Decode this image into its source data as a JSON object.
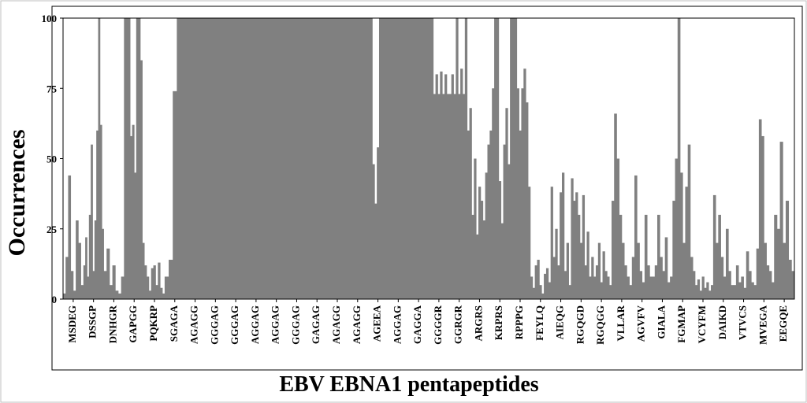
{
  "chart_data": {
    "type": "bar",
    "xlabel": "EBV EBNA1 pentapeptides",
    "ylabel": "Occurrences",
    "ylim": [
      0,
      100
    ],
    "yticks": [
      0,
      25,
      50,
      75,
      100
    ],
    "grid": false,
    "bar_color": "#808080",
    "x_tick_labels": [
      "MSDEG",
      "DSSGP",
      "DNHGR",
      "GAPGG",
      "PQKRP",
      "SGAGA",
      "AGAGG",
      "GGGAG",
      "GGGAG",
      "AGGAG",
      "AGGAG",
      "GGGAG",
      "GAGAG",
      "AGAGG",
      "AGAGG",
      "AGEEA",
      "AGGAG",
      "GAGGA",
      "GGGGR",
      "GGRGR",
      "ARGRS",
      "KRPRS",
      "RPPPG",
      "FEYLQ",
      "AIEQG",
      "RGQGD",
      "RGQGG",
      "VLLAR",
      "AGVFV",
      "GIALA",
      "FGMAP",
      "VCYFM",
      "DAIKD",
      "VTVCS",
      "MVEGA",
      "EEGQE"
    ],
    "series": [
      {
        "values_by_segment": [
          [
            2,
            15,
            44,
            10,
            3,
            28,
            20,
            5
          ],
          [
            12,
            22,
            8,
            30,
            55,
            10,
            28,
            60,
            100,
            62,
            25
          ],
          [
            10,
            18,
            5,
            12,
            3,
            2,
            8
          ],
          [
            100,
            100,
            100,
            58,
            62,
            45,
            100,
            100,
            85,
            20
          ],
          [
            12,
            8,
            3,
            11,
            12,
            5,
            13,
            4,
            2
          ],
          [
            8,
            14,
            74,
            100,
            100
          ],
          [
            100,
            100,
            100,
            100,
            100,
            100,
            100,
            100,
            100
          ],
          [
            100,
            100,
            100,
            100,
            100,
            100,
            100,
            100,
            100
          ],
          [
            100,
            100,
            100,
            100,
            100,
            100,
            100,
            100,
            100
          ],
          [
            100,
            100,
            100,
            100,
            100,
            100,
            100,
            100,
            100
          ],
          [
            100,
            100,
            100,
            100,
            100,
            100,
            100,
            100,
            100
          ],
          [
            100,
            100,
            100,
            100,
            100,
            100,
            100,
            100,
            100
          ],
          [
            100,
            100,
            100,
            100,
            100,
            100,
            100,
            100,
            100
          ],
          [
            100,
            100,
            100,
            100,
            100,
            100,
            100,
            100,
            100
          ],
          [
            100,
            100,
            100,
            100,
            100,
            100,
            100,
            100,
            100
          ],
          [
            100,
            100,
            48,
            34,
            54,
            100,
            100,
            100,
            100
          ],
          [
            100,
            100,
            100,
            100,
            100,
            100,
            100,
            100,
            100
          ],
          [
            100,
            100,
            100,
            100,
            100,
            100,
            100,
            100,
            100
          ],
          [
            100,
            100,
            73,
            80,
            73,
            81,
            73,
            80,
            73
          ],
          [
            73,
            80,
            73,
            100,
            73,
            82,
            73,
            100,
            60
          ],
          [
            68,
            30,
            50,
            23,
            40,
            35,
            28,
            45,
            55
          ],
          [
            60,
            75,
            100,
            100,
            42,
            27,
            55,
            68,
            48
          ],
          [
            100,
            100,
            100,
            75,
            60,
            75,
            82,
            70,
            40
          ],
          [
            8,
            4,
            12,
            14,
            5,
            2,
            9,
            11,
            6
          ],
          [
            40,
            15,
            25,
            12,
            38,
            45,
            10,
            20,
            5
          ],
          [
            43,
            35,
            38,
            30,
            20,
            37,
            12,
            24,
            8
          ],
          [
            15,
            8,
            12,
            20,
            6,
            17,
            10,
            8,
            5
          ],
          [
            35,
            66,
            50,
            30,
            20,
            12,
            8,
            5
          ],
          [
            15,
            44,
            20,
            10,
            6,
            30,
            12,
            8
          ],
          [
            8,
            12,
            30,
            15,
            10,
            22,
            6,
            8
          ],
          [
            35,
            50,
            100,
            45,
            20,
            40,
            55,
            15
          ],
          [
            10,
            5,
            7,
            3,
            8,
            4,
            6,
            3,
            5
          ],
          [
            37,
            20,
            30,
            15,
            8,
            25,
            10,
            5
          ],
          [
            5,
            12,
            6,
            8,
            4,
            17,
            10,
            6
          ],
          [
            5,
            18,
            64,
            58,
            20,
            12,
            10,
            6
          ],
          [
            30,
            25,
            56,
            20,
            35,
            14,
            10
          ]
        ]
      }
    ]
  }
}
